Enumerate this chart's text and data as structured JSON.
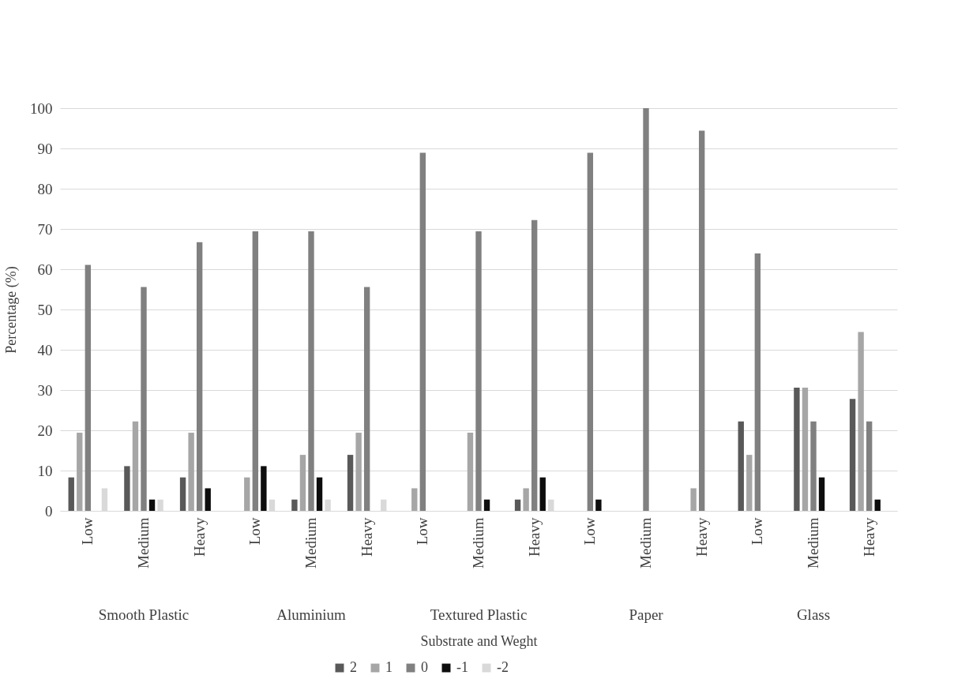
{
  "chart_data": {
    "type": "bar",
    "xlabel": "Substrate and Weght",
    "ylabel": "Percentage (%)",
    "categories": [
      "Low",
      "Medium",
      "Heavy",
      "Low",
      "Medium",
      "Heavy",
      "Low",
      "Medium",
      "Heavy",
      "Low",
      "Medium",
      "Heavy",
      "Low",
      "Medium",
      "Heavy"
    ],
    "annotations": [
      "Smooth Plastic",
      "Aluminium",
      "Textured Plastic",
      "Paper",
      "Glass"
    ],
    "series": [
      {
        "name": "2",
        "color": "#595959",
        "values": [
          8.3,
          11.1,
          8.3,
          0,
          2.8,
          13.9,
          0,
          0,
          2.8,
          0,
          0,
          0,
          22.2,
          30.6,
          27.8
        ]
      },
      {
        "name": "1",
        "color": "#a6a6a6",
        "values": [
          19.4,
          22.2,
          19.4,
          8.3,
          13.9,
          19.4,
          5.6,
          19.4,
          5.6,
          0,
          0,
          5.6,
          13.9,
          30.6,
          44.4
        ]
      },
      {
        "name": "0",
        "color": "#808080",
        "values": [
          61.1,
          55.6,
          66.7,
          69.4,
          69.4,
          55.6,
          88.9,
          69.4,
          72.2,
          88.9,
          100,
          94.4,
          63.9,
          22.2,
          22.2
        ]
      },
      {
        "name": "-1",
        "color": "#0d0d0d",
        "values": [
          0,
          2.8,
          5.6,
          11.1,
          8.3,
          0,
          0,
          2.8,
          8.3,
          2.8,
          0,
          0,
          0,
          8.3,
          2.8
        ]
      },
      {
        "name": "-2",
        "color": "#d9d9d9",
        "values": [
          5.6,
          2.8,
          0,
          2.8,
          2.8,
          2.8,
          0,
          0,
          2.8,
          0,
          0,
          0,
          0,
          0,
          0
        ]
      }
    ],
    "ylim": [
      0,
      100
    ],
    "yticks": [
      0,
      10,
      20,
      30,
      40,
      50,
      60,
      70,
      80,
      90,
      100
    ],
    "grid": "y",
    "legend": "bottom"
  }
}
